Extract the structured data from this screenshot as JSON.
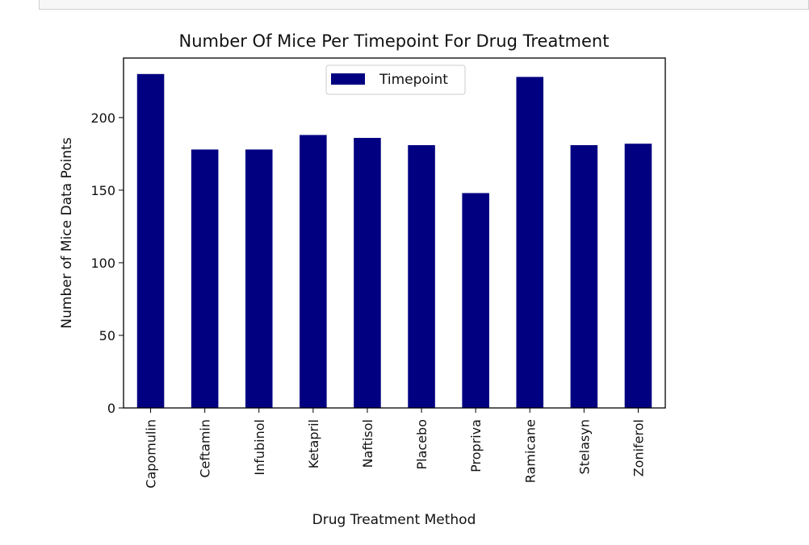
{
  "chart_data": {
    "type": "bar",
    "title": "Number Of Mice Per Timepoint For Drug Treatment",
    "xlabel": "Drug Treatment Method",
    "ylabel": "Number of Mice Data Points",
    "categories": [
      "Capomulin",
      "Ceftamin",
      "Infubinol",
      "Ketapril",
      "Naftisol",
      "Placebo",
      "Propriva",
      "Ramicane",
      "Stelasyn",
      "Zoniferol"
    ],
    "series": [
      {
        "name": "Timepoint",
        "values": [
          230,
          178,
          178,
          188,
          186,
          181,
          148,
          228,
          181,
          182
        ]
      }
    ],
    "ylim": [
      0,
      241
    ],
    "yticks": [
      0,
      50,
      100,
      150,
      200
    ],
    "legend": "upper center",
    "grid": false,
    "color": "#000080"
  }
}
